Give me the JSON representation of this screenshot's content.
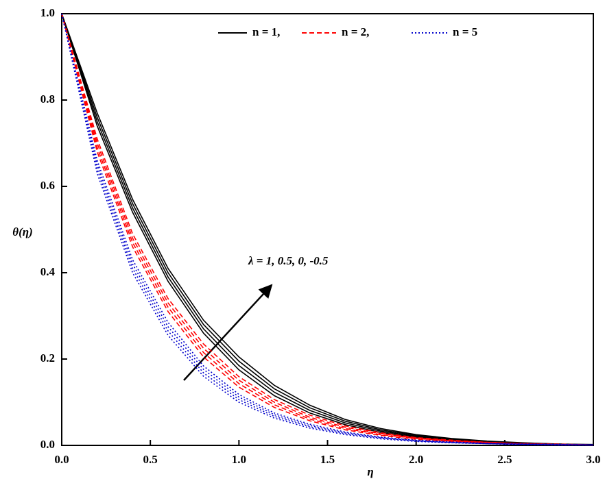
{
  "chart_data": {
    "type": "line",
    "xlabel": "η",
    "ylabel": "θ(η)",
    "annotation": "λ = 1, 0.5, 0, -0.5",
    "x": [
      0,
      0.2,
      0.4,
      0.6,
      0.8,
      1.0,
      1.2,
      1.4,
      1.6,
      1.8,
      2.0,
      2.2,
      2.4,
      2.6,
      2.8,
      3.0
    ],
    "series": [
      {
        "name": "n = 1,",
        "color": "#000000",
        "dash": "solid",
        "lines": [
          [
            1,
            0.74,
            0.54,
            0.38,
            0.26,
            0.175,
            0.115,
            0.075,
            0.048,
            0.03,
            0.019,
            0.012,
            0.007,
            0.004,
            0.002,
            0.001
          ],
          [
            1,
            0.75,
            0.55,
            0.39,
            0.27,
            0.185,
            0.123,
            0.081,
            0.052,
            0.033,
            0.021,
            0.013,
            0.008,
            0.005,
            0.003,
            0.001
          ],
          [
            1,
            0.76,
            0.56,
            0.4,
            0.28,
            0.195,
            0.131,
            0.087,
            0.056,
            0.036,
            0.023,
            0.014,
            0.009,
            0.005,
            0.003,
            0.001
          ],
          [
            1,
            0.77,
            0.57,
            0.41,
            0.29,
            0.205,
            0.139,
            0.093,
            0.06,
            0.039,
            0.025,
            0.016,
            0.01,
            0.006,
            0.003,
            0.002
          ]
        ]
      },
      {
        "name": "n = 2,",
        "color": "#ff0000",
        "dash": "dashed",
        "lines": [
          [
            1,
            0.68,
            0.46,
            0.31,
            0.205,
            0.135,
            0.088,
            0.057,
            0.036,
            0.023,
            0.014,
            0.009,
            0.005,
            0.003,
            0.002,
            0.001
          ],
          [
            1,
            0.69,
            0.47,
            0.32,
            0.215,
            0.143,
            0.094,
            0.061,
            0.039,
            0.025,
            0.016,
            0.01,
            0.006,
            0.004,
            0.002,
            0.001
          ],
          [
            1,
            0.7,
            0.48,
            0.33,
            0.225,
            0.151,
            0.1,
            0.065,
            0.042,
            0.027,
            0.017,
            0.011,
            0.007,
            0.004,
            0.002,
            0.001
          ],
          [
            1,
            0.71,
            0.49,
            0.34,
            0.235,
            0.159,
            0.106,
            0.07,
            0.045,
            0.029,
            0.018,
            0.012,
            0.007,
            0.004,
            0.003,
            0.001
          ]
        ]
      },
      {
        "name": "n = 5",
        "color": "#0000cc",
        "dash": "dotted",
        "lines": [
          [
            1,
            0.63,
            0.4,
            0.255,
            0.16,
            0.1,
            0.063,
            0.04,
            0.025,
            0.015,
            0.009,
            0.006,
            0.004,
            0.002,
            0.001,
            0.001
          ],
          [
            1,
            0.64,
            0.41,
            0.265,
            0.168,
            0.106,
            0.067,
            0.043,
            0.027,
            0.017,
            0.01,
            0.006,
            0.004,
            0.002,
            0.001,
            0.001
          ],
          [
            1,
            0.65,
            0.42,
            0.275,
            0.176,
            0.112,
            0.071,
            0.046,
            0.029,
            0.018,
            0.011,
            0.007,
            0.004,
            0.003,
            0.002,
            0.001
          ],
          [
            1,
            0.66,
            0.43,
            0.285,
            0.184,
            0.118,
            0.075,
            0.049,
            0.031,
            0.019,
            0.012,
            0.008,
            0.005,
            0.003,
            0.002,
            0.001
          ]
        ]
      }
    ],
    "xlim": [
      0,
      3
    ],
    "ylim": [
      0,
      1
    ],
    "xticks": [
      {
        "value": 0,
        "label": "0.0"
      },
      {
        "value": 0.5,
        "label": "0.5"
      },
      {
        "value": 1,
        "label": "1.0"
      },
      {
        "value": 1.5,
        "label": "1.5"
      },
      {
        "value": 2,
        "label": "2.0"
      },
      {
        "value": 2.5,
        "label": "2.5"
      },
      {
        "value": 3,
        "label": "3.0"
      }
    ],
    "yticks": [
      {
        "value": 0,
        "label": "0.0"
      },
      {
        "value": 0.2,
        "label": "0.2"
      },
      {
        "value": 0.4,
        "label": "0.4"
      },
      {
        "value": 0.6,
        "label": "0.6"
      },
      {
        "value": 0.8,
        "label": "0.8"
      },
      {
        "value": 1,
        "label": "1.0"
      }
    ],
    "legend": "top"
  }
}
